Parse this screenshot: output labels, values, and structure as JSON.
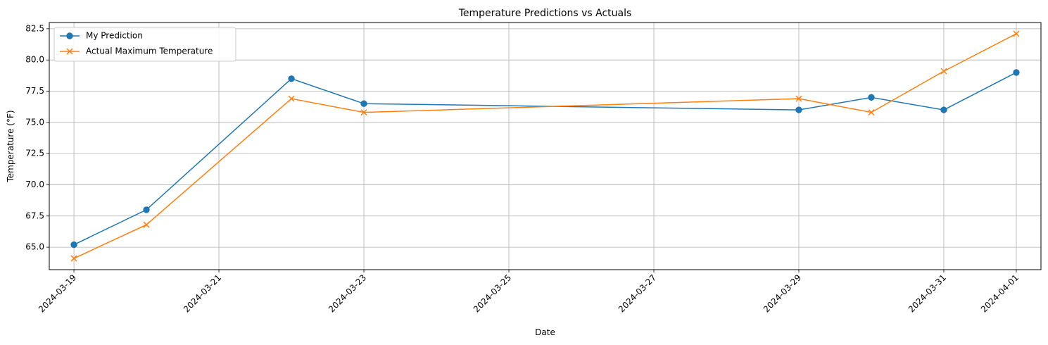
{
  "chart_data": {
    "type": "line",
    "title": "Temperature Predictions vs Actuals",
    "xlabel": "Date",
    "ylabel": "Temperature (°F)",
    "xlim": [
      "2024-03-18T15:50",
      "2024-04-01T08:10"
    ],
    "ylim": [
      63.2,
      83.0
    ],
    "x_ticks": [
      "2024-03-19",
      "2024-03-21",
      "2024-03-23",
      "2024-03-25",
      "2024-03-27",
      "2024-03-29",
      "2024-03-31",
      "2024-04-01"
    ],
    "y_ticks": [
      65.0,
      67.5,
      70.0,
      72.5,
      75.0,
      77.5,
      80.0,
      82.5
    ],
    "y_tick_labels": [
      "65.0",
      "67.5",
      "70.0",
      "72.5",
      "75.0",
      "77.5",
      "80.0",
      "82.5"
    ],
    "grid": true,
    "legend_position": "top-left",
    "x": [
      "2024-03-19",
      "2024-03-20",
      "2024-03-22",
      "2024-03-23",
      "2024-03-29",
      "2024-03-30",
      "2024-03-31",
      "2024-04-01"
    ],
    "series": [
      {
        "name": "My Prediction",
        "color": "#1f77b4",
        "marker": "circle",
        "values": [
          65.2,
          68.0,
          78.5,
          76.5,
          76.0,
          77.0,
          76.0,
          79.0
        ]
      },
      {
        "name": "Actual Maximum Temperature",
        "color": "#ff7f0e",
        "marker": "x",
        "values": [
          64.1,
          66.8,
          76.9,
          75.8,
          76.9,
          75.8,
          79.1,
          82.1
        ]
      }
    ]
  }
}
